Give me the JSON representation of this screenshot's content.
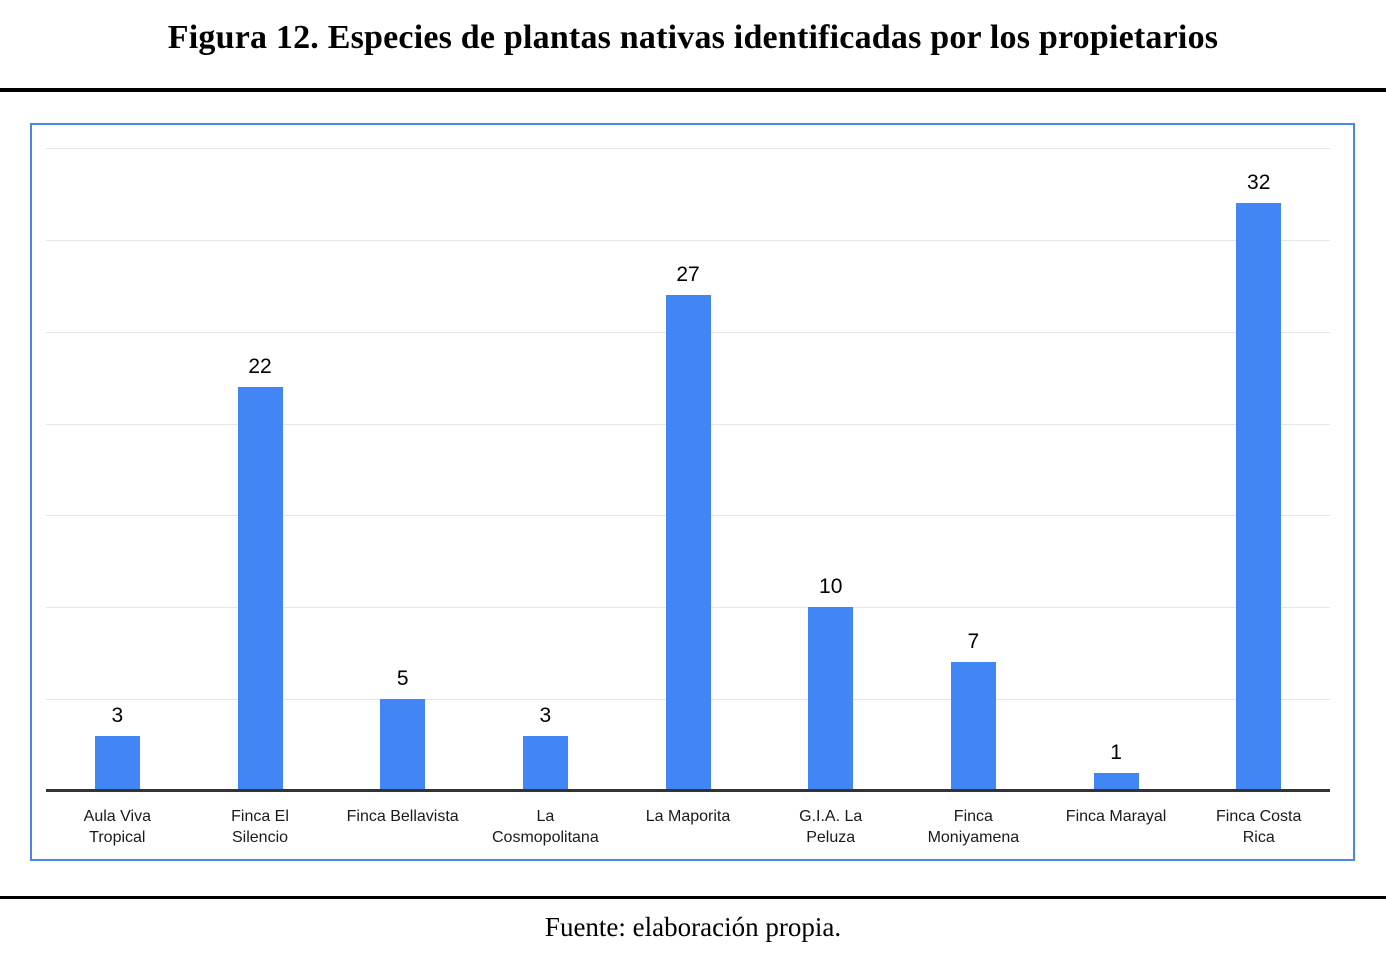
{
  "figure": {
    "title": "Figura 12. Especies de plantas nativas identificadas por los propietarios",
    "source_note": "Fuente: elaboración propia."
  },
  "colors": {
    "bar_fill": "#4285f4",
    "chart_border": "#4a86e8",
    "gridline": "#e6e6e6",
    "axis_line": "#333333",
    "divider": "#000000",
    "label_text": "#1a1a1a",
    "value_label_text": "#000000"
  },
  "chart_data": {
    "type": "bar",
    "title": "Figura 12. Especies de plantas nativas identificadas por los propietarios",
    "categories": [
      "Aula Viva Tropical",
      "Finca El Silencio",
      "Finca Bellavista",
      "La Cosmopolitana",
      "La Maporita",
      "G.I.A. La Peluza",
      "Finca Moniyamena",
      "Finca Marayal",
      "Finca Costa Rica"
    ],
    "category_label_lines": [
      [
        "Aula Viva",
        "Tropical"
      ],
      [
        "Finca El",
        "Silencio"
      ],
      [
        "Finca Bellavista"
      ],
      [
        "La",
        "Cosmopolitana"
      ],
      [
        "La Maporita"
      ],
      [
        "G.I.A. La",
        "Peluza"
      ],
      [
        "Finca",
        "Moniyamena"
      ],
      [
        "Finca Marayal"
      ],
      [
        "Finca Costa",
        "Rica"
      ]
    ],
    "values": [
      3,
      22,
      5,
      3,
      27,
      10,
      7,
      1,
      32
    ],
    "xlabel": "",
    "ylabel": "",
    "ylim": [
      0,
      35
    ],
    "gridline_step": 5,
    "y_axis_tick_labels_visible": false,
    "data_labels_visible": true,
    "legend": "none",
    "grid": "horizontal"
  }
}
